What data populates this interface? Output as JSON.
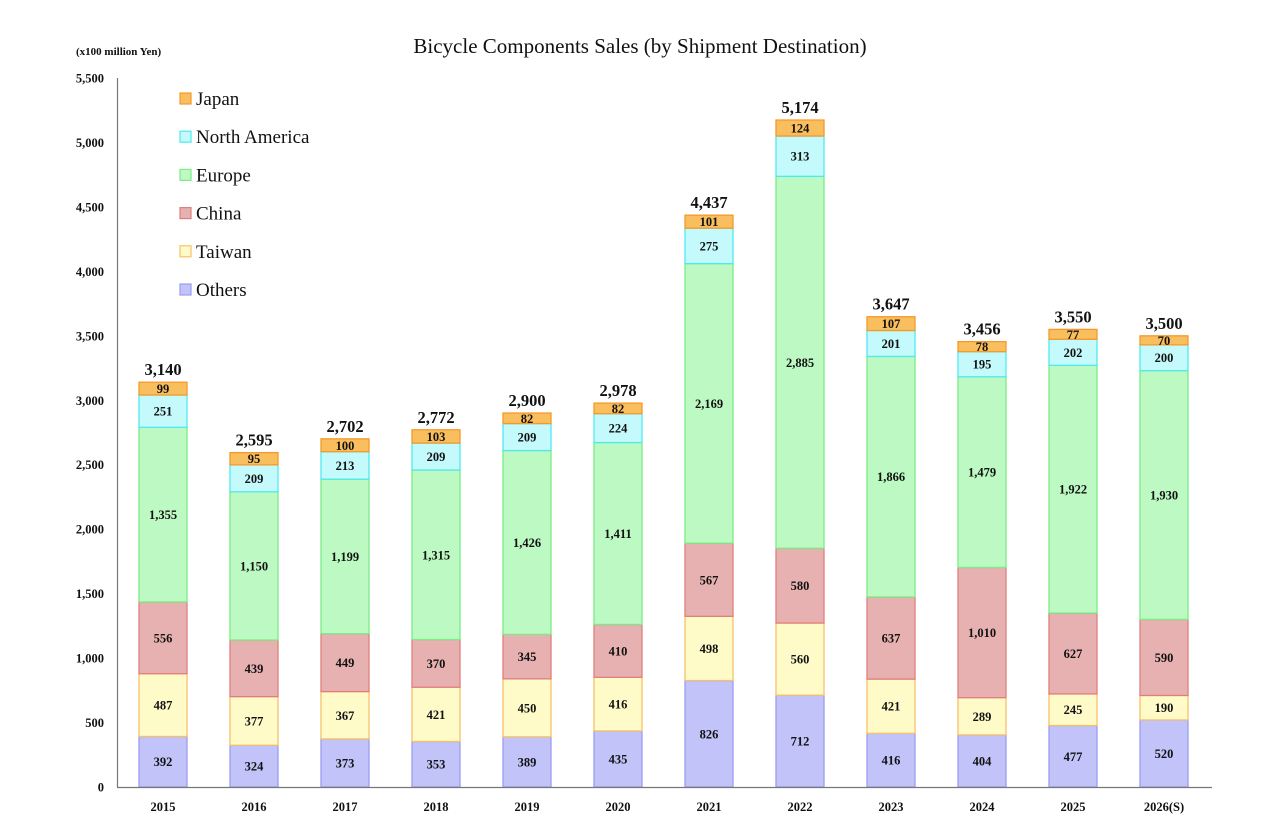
{
  "chart_data": {
    "type": "bar",
    "stacked": true,
    "title": "Bicycle Components Sales (by Shipment Destination)",
    "ylabel": "(x100 million Yen)",
    "xlabel": "",
    "ylim": [
      0,
      5500
    ],
    "yticks": [
      0,
      500,
      1000,
      1500,
      2000,
      2500,
      3000,
      3500,
      4000,
      4500,
      5000,
      5500
    ],
    "ytick_labels": [
      "0",
      "500",
      "1,000",
      "1,500",
      "2,000",
      "2,500",
      "3,000",
      "3,500",
      "4,000",
      "4,500",
      "5,000",
      "5,500"
    ],
    "grid": false,
    "legend_position": "top-left",
    "categories": [
      "2015",
      "2016",
      "2017",
      "2018",
      "2019",
      "2020",
      "2021",
      "2022",
      "2023",
      "2024",
      "2025",
      "2026(S)"
    ],
    "totals": [
      3140,
      2595,
      2702,
      2772,
      2900,
      2978,
      4437,
      5174,
      3647,
      3456,
      3550,
      3500
    ],
    "total_labels": [
      "3,140",
      "2,595",
      "2,702",
      "2,772",
      "2,900",
      "2,978",
      "4,437",
      "5,174",
      "3,647",
      "3,456",
      "3,550",
      "3,500"
    ],
    "series": [
      {
        "name": "Others",
        "fill": "#c1c3f9",
        "stroke": "#9a9df2",
        "values": [
          392,
          324,
          373,
          353,
          389,
          435,
          826,
          712,
          416,
          404,
          477,
          520
        ],
        "labels": [
          "392",
          "324",
          "373",
          "353",
          "389",
          "435",
          "826",
          "712",
          "416",
          "404",
          "477",
          "520"
        ]
      },
      {
        "name": "Taiwan",
        "fill": "#fffbc9",
        "stroke": "#f7c16a",
        "values": [
          487,
          377,
          367,
          421,
          450,
          416,
          498,
          560,
          421,
          289,
          245,
          190
        ],
        "labels": [
          "487",
          "377",
          "367",
          "421",
          "450",
          "416",
          "498",
          "560",
          "421",
          "289",
          "245",
          "190"
        ]
      },
      {
        "name": "China",
        "fill": "#e8b1b1",
        "stroke": "#e07e7e",
        "values": [
          556,
          439,
          449,
          370,
          345,
          410,
          567,
          580,
          637,
          1010,
          627,
          590
        ],
        "labels": [
          "556",
          "439",
          "449",
          "370",
          "345",
          "410",
          "567",
          "580",
          "637",
          "1,010",
          "627",
          "590"
        ]
      },
      {
        "name": "Europe",
        "fill": "#bdf9c3",
        "stroke": "#7cec84",
        "values": [
          1355,
          1150,
          1199,
          1315,
          1426,
          1411,
          2169,
          2885,
          1866,
          1479,
          1922,
          1930
        ],
        "labels": [
          "1,355",
          "1,150",
          "1,199",
          "1,315",
          "1,426",
          "1,411",
          "2,169",
          "2,885",
          "1,866",
          "1,479",
          "1,922",
          "1,930"
        ]
      },
      {
        "name": "North America",
        "fill": "#c5fafc",
        "stroke": "#4fe9f0",
        "values": [
          251,
          209,
          213,
          209,
          209,
          224,
          275,
          313,
          201,
          195,
          202,
          200
        ],
        "labels": [
          "251",
          "209",
          "213",
          "209",
          "209",
          "224",
          "275",
          "313",
          "201",
          "195",
          "202",
          "200"
        ]
      },
      {
        "name": "Japan",
        "fill": "#f9be5e",
        "stroke": "#f59a2a",
        "values": [
          99,
          95,
          100,
          103,
          82,
          82,
          101,
          124,
          107,
          78,
          77,
          70
        ],
        "labels": [
          "99",
          "95",
          "100",
          "103",
          "82",
          "82",
          "101",
          "124",
          "107",
          "78",
          "77",
          "70"
        ]
      }
    ],
    "legend_order": [
      "Japan",
      "North America",
      "Europe",
      "China",
      "Taiwan",
      "Others"
    ]
  }
}
